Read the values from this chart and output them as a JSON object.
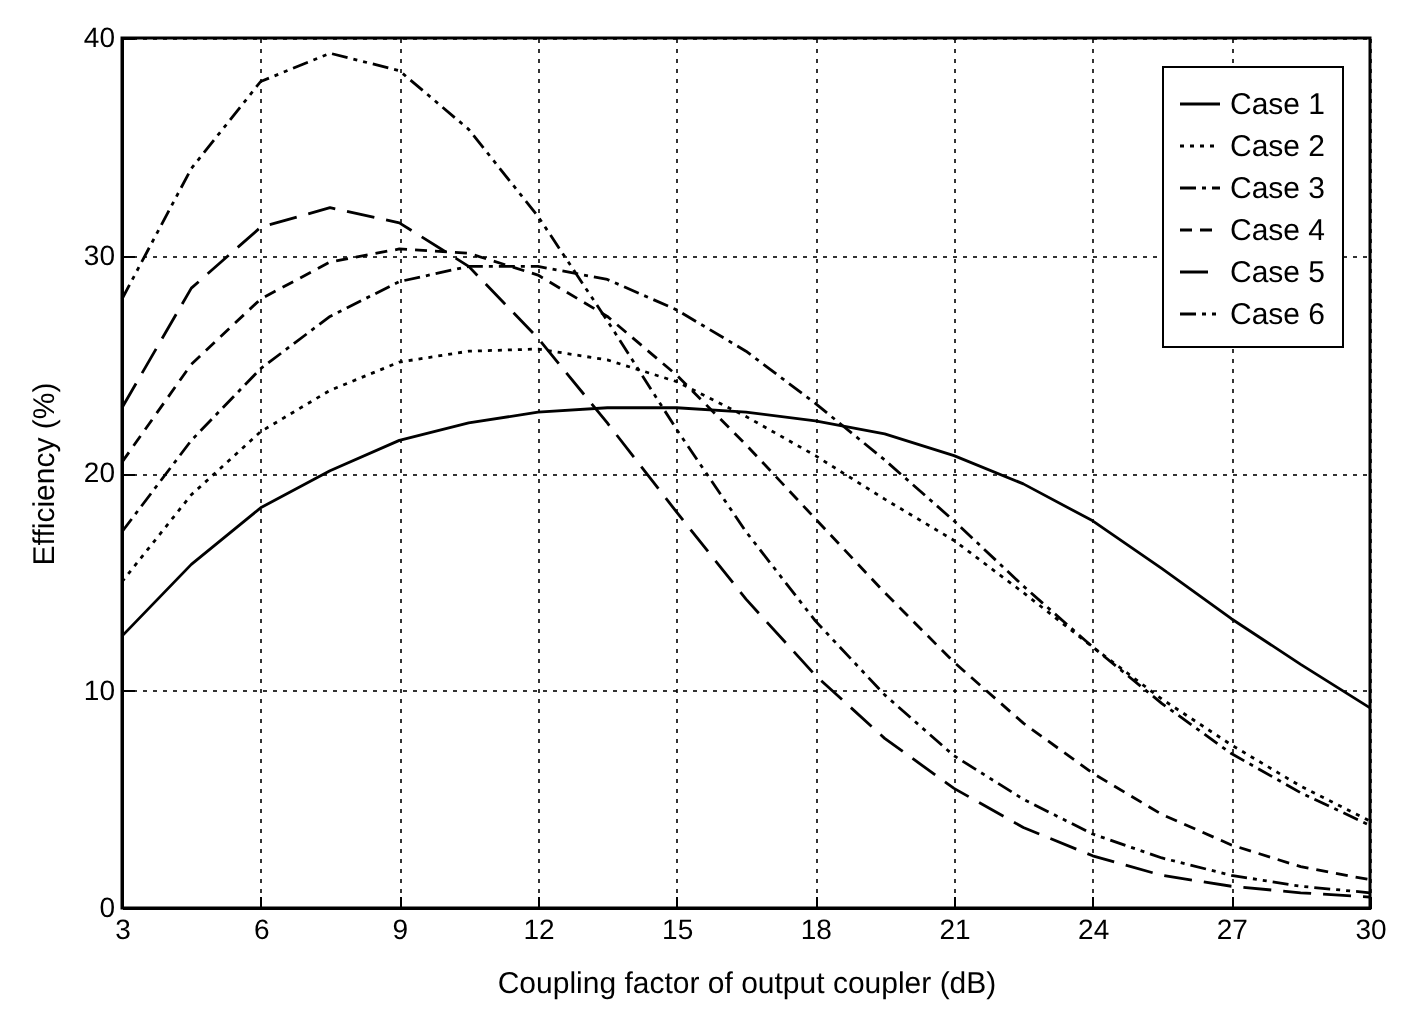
{
  "chart_data": {
    "type": "line",
    "xlabel": "Coupling factor of output coupler (dB)",
    "ylabel": "Efficiency (%)",
    "x": [
      3,
      4.5,
      6,
      7.5,
      9,
      10.5,
      12,
      13.5,
      15,
      16.5,
      18,
      19.5,
      21,
      22.5,
      24,
      25.5,
      27,
      28.5,
      30
    ],
    "series": [
      {
        "name": "Case 1",
        "color": "#000000",
        "line_style": "solid",
        "values": [
          12.5,
          15.8,
          18.4,
          20.1,
          21.5,
          22.3,
          22.8,
          23.0,
          23.0,
          22.8,
          22.4,
          21.8,
          20.8,
          19.5,
          17.8,
          15.6,
          13.3,
          11.2,
          9.2
        ]
      },
      {
        "name": "Case 2",
        "color": "#000000",
        "line_style": "dotted",
        "values": [
          15,
          19,
          21.9,
          23.8,
          25.1,
          25.6,
          25.7,
          25.2,
          24.2,
          22.6,
          20.8,
          18.8,
          16.9,
          14.5,
          12.0,
          9.6,
          7.5,
          5.6,
          4.0
        ]
      },
      {
        "name": "Case 3",
        "color": "#000000",
        "line_style": "dashdot",
        "values": [
          17.3,
          21.5,
          24.8,
          27.2,
          28.8,
          29.5,
          29.5,
          28.9,
          27.5,
          25.6,
          23.2,
          20.6,
          17.8,
          14.8,
          12.0,
          9.4,
          7.1,
          5.3,
          3.8
        ]
      },
      {
        "name": "Case 4",
        "color": "#000000",
        "line_style": "dashed",
        "values": [
          20.5,
          25,
          28,
          29.7,
          30.3,
          30.1,
          29.1,
          27.2,
          24.5,
          21.3,
          17.9,
          14.5,
          11.3,
          8.5,
          6.2,
          4.3,
          2.9,
          1.9,
          1.3
        ]
      },
      {
        "name": "Case 5",
        "color": "#000000",
        "line_style": "longdash",
        "values": [
          23,
          28.5,
          31.3,
          32.2,
          31.5,
          29.5,
          26.2,
          22.3,
          18.2,
          14.2,
          10.7,
          7.8,
          5.5,
          3.7,
          2.4,
          1.5,
          1.0,
          0.7,
          0.5
        ]
      },
      {
        "name": "Case 6",
        "color": "#000000",
        "line_style": "dashdotdot",
        "values": [
          28,
          34,
          38,
          39.3,
          38.5,
          35.8,
          31.8,
          27,
          22,
          17.3,
          13.2,
          9.8,
          7.0,
          5.0,
          3.4,
          2.3,
          1.5,
          1.0,
          0.7
        ]
      }
    ],
    "xlim": [
      3,
      30
    ],
    "xticks": [
      3,
      6,
      9,
      12,
      15,
      18,
      21,
      24,
      27,
      30
    ],
    "ylim": [
      0,
      40
    ],
    "yticks": [
      0,
      10,
      20,
      30,
      40
    ],
    "grid": true,
    "legend": "top right"
  }
}
